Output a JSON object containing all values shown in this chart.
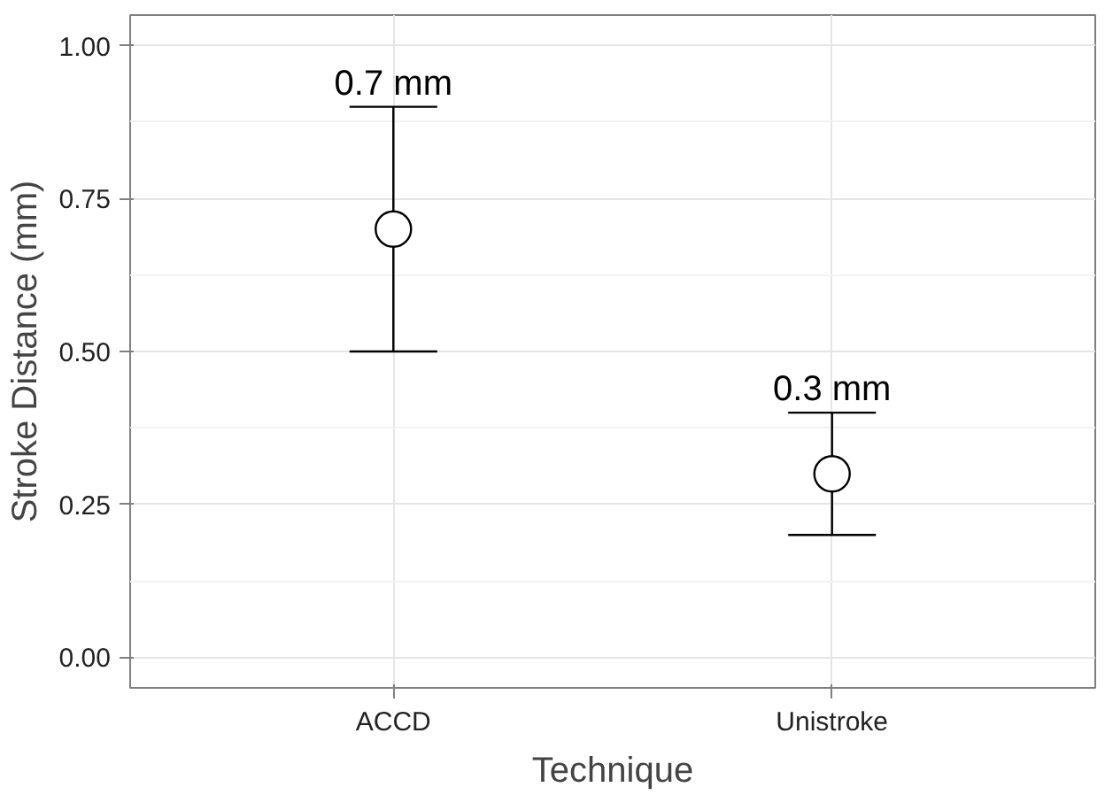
{
  "chart_data": {
    "type": "scatter",
    "xlabel": "Technique",
    "ylabel": "Stroke Distance (mm)",
    "categories": [
      "ACCD",
      "Unistroke"
    ],
    "values": [
      0.7,
      0.3
    ],
    "errors": [
      [
        0.5,
        0.9
      ],
      [
        0.2,
        0.4
      ]
    ],
    "value_labels": [
      "0.7 mm",
      "0.3 mm"
    ],
    "color": "#000000",
    "marker": "circle",
    "ylim": [
      -0.05,
      1.05
    ],
    "yticks": [
      {
        "value": 0,
        "label": "0.00"
      },
      {
        "value": 0.25,
        "label": "0.25"
      },
      {
        "value": 0.5,
        "label": "0.50"
      },
      {
        "value": 0.75,
        "label": "0.75"
      },
      {
        "value": 1,
        "label": "1.00"
      }
    ],
    "grid": true
  }
}
